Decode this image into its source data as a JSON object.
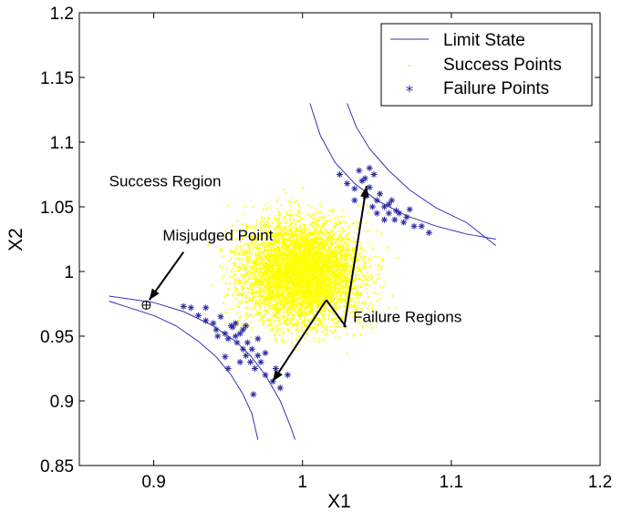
{
  "chart_data": {
    "type": "scatter",
    "xlabel": "X1",
    "ylabel": "X2",
    "xlim": [
      0.85,
      1.2
    ],
    "ylim": [
      0.85,
      1.2
    ],
    "xticks": [
      "0.9",
      "1",
      "1.1",
      "1.2"
    ],
    "xtick_values": [
      0.9,
      1.0,
      1.1,
      1.2
    ],
    "yticks": [
      "0.85",
      "0.9",
      "0.95",
      "1",
      "1.05",
      "1.1",
      "1.15",
      "1.2"
    ],
    "ytick_values": [
      0.85,
      0.9,
      0.95,
      1.0,
      1.05,
      1.1,
      1.15,
      1.2
    ],
    "grid": false,
    "legend_position": "top-right",
    "colors": {
      "limit_state": "#3333bb",
      "success": "#ffff00",
      "failure": "#2a2aa0",
      "annotation": "#000000"
    },
    "series": [
      {
        "name": "Limit State",
        "kind": "line",
        "curves": [
          [
            [
              0.87,
              0.981
            ],
            [
              0.9,
              0.976
            ],
            [
              0.92,
              0.969
            ],
            [
              0.94,
              0.958
            ],
            [
              0.955,
              0.946
            ],
            [
              0.965,
              0.935
            ],
            [
              0.975,
              0.92
            ],
            [
              0.985,
              0.9
            ],
            [
              0.992,
              0.88
            ],
            [
              0.995,
              0.87
            ]
          ],
          [
            [
              0.87,
              0.977
            ],
            [
              0.9,
              0.966
            ],
            [
              0.915,
              0.958
            ],
            [
              0.93,
              0.946
            ],
            [
              0.942,
              0.934
            ],
            [
              0.952,
              0.92
            ],
            [
              0.96,
              0.905
            ],
            [
              0.966,
              0.89
            ],
            [
              0.97,
              0.87
            ]
          ],
          [
            [
              1.005,
              1.13
            ],
            [
              1.012,
              1.105
            ],
            [
              1.022,
              1.084
            ],
            [
              1.035,
              1.068
            ],
            [
              1.05,
              1.055
            ],
            [
              1.07,
              1.043
            ],
            [
              1.09,
              1.035
            ],
            [
              1.11,
              1.029
            ],
            [
              1.13,
              1.025
            ]
          ],
          [
            [
              1.03,
              1.13
            ],
            [
              1.036,
              1.112
            ],
            [
              1.045,
              1.095
            ],
            [
              1.058,
              1.078
            ],
            [
              1.072,
              1.063
            ],
            [
              1.09,
              1.049
            ],
            [
              1.11,
              1.038
            ],
            [
              1.13,
              1.02
            ]
          ]
        ]
      },
      {
        "name": "Success Points",
        "kind": "scatter",
        "center": [
          1.0,
          1.0
        ],
        "std": 0.02,
        "count": 7000,
        "seed": 7
      },
      {
        "name": "Failure Points",
        "kind": "scatter",
        "points": [
          [
            0.92,
            0.973
          ],
          [
            0.925,
            0.972
          ],
          [
            0.93,
            0.966
          ],
          [
            0.935,
            0.962
          ],
          [
            0.935,
            0.972
          ],
          [
            0.94,
            0.96
          ],
          [
            0.942,
            0.955
          ],
          [
            0.945,
            0.965
          ],
          [
            0.948,
            0.952
          ],
          [
            0.95,
            0.948
          ],
          [
            0.952,
            0.958
          ],
          [
            0.953,
            0.957
          ],
          [
            0.955,
            0.95
          ],
          [
            0.956,
            0.945
          ],
          [
            0.958,
            0.952
          ],
          [
            0.96,
            0.94
          ],
          [
            0.96,
            0.955
          ],
          [
            0.962,
            0.935
          ],
          [
            0.963,
            0.945
          ],
          [
            0.965,
            0.93
          ],
          [
            0.966,
            0.94
          ],
          [
            0.968,
            0.925
          ],
          [
            0.97,
            0.935
          ],
          [
            0.972,
            0.93
          ],
          [
            0.975,
            0.92
          ],
          [
            0.955,
            0.96
          ],
          [
            0.958,
            0.93
          ],
          [
            0.967,
            0.905
          ],
          [
            0.98,
            0.915
          ],
          [
            0.982,
            0.925
          ],
          [
            0.985,
            0.91
          ],
          [
            0.99,
            0.92
          ],
          [
            0.948,
            0.934
          ],
          [
            0.962,
            0.958
          ],
          [
            0.95,
            0.925
          ],
          [
            0.943,
            0.95
          ],
          [
            0.97,
            0.948
          ],
          [
            0.975,
            0.937
          ],
          [
            1.025,
            1.075
          ],
          [
            1.03,
            1.068
          ],
          [
            1.035,
            1.064
          ],
          [
            1.04,
            1.07
          ],
          [
            1.038,
            1.078
          ],
          [
            1.042,
            1.072
          ],
          [
            1.045,
            1.08
          ],
          [
            1.045,
            1.065
          ],
          [
            1.048,
            1.075
          ],
          [
            1.05,
            1.055
          ],
          [
            1.052,
            1.06
          ],
          [
            1.055,
            1.05
          ],
          [
            1.058,
            1.045
          ],
          [
            1.06,
            1.055
          ],
          [
            1.062,
            1.04
          ],
          [
            1.065,
            1.045
          ],
          [
            1.068,
            1.038
          ],
          [
            1.07,
            1.042
          ],
          [
            1.072,
            1.048
          ],
          [
            1.075,
            1.035
          ],
          [
            1.08,
            1.035
          ],
          [
            1.085,
            1.03
          ],
          [
            1.05,
            1.045
          ],
          [
            1.055,
            1.04
          ],
          [
            1.058,
            1.052
          ],
          [
            1.063,
            1.047
          ],
          [
            1.035,
            1.055
          ],
          [
            1.042,
            1.058
          ],
          [
            1.047,
            1.05
          ]
        ]
      }
    ],
    "misjudged_point": [
      0.895,
      0.974
    ],
    "annotations": [
      {
        "text": "Success Region",
        "x": 0.87,
        "y": 1.066
      },
      {
        "text": "Misjudged Point",
        "x": 0.906,
        "y": 1.024,
        "arrow_from": [
          0.92,
          1.015
        ],
        "arrow_to": [
          0.897,
          0.978
        ]
      },
      {
        "text": "Failure Regions",
        "x": 1.034,
        "y": 0.961,
        "path": [
          [
            1.028,
            0.957
          ],
          [
            1.016,
            0.978
          ]
        ],
        "arrows_to": [
          [
            0.98,
            0.915
          ],
          [
            1.043,
            1.066
          ]
        ]
      }
    ]
  }
}
